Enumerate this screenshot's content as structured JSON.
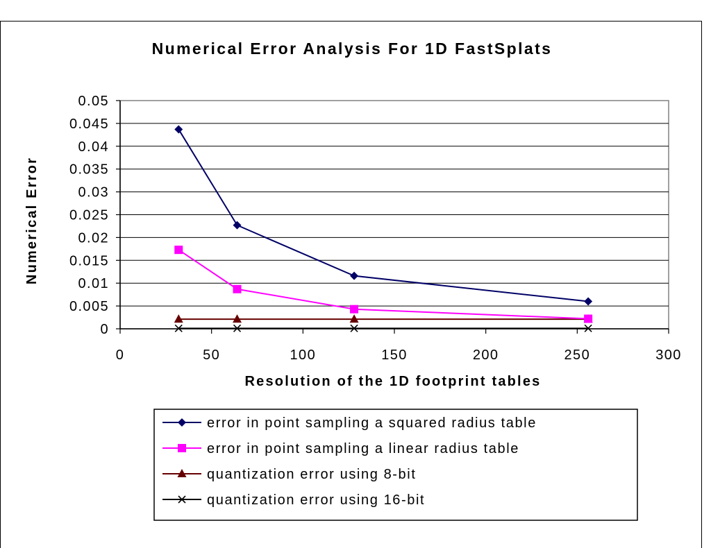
{
  "chart_data": {
    "type": "line",
    "title": "Numerical Error Analysis For 1D FastSplats",
    "xlabel": "Resolution of the 1D footprint tables",
    "ylabel": "Numerical Error",
    "xlim": [
      0,
      300
    ],
    "ylim": [
      0,
      0.05
    ],
    "x_ticks": [
      "0",
      "50",
      "100",
      "150",
      "200",
      "250",
      "300"
    ],
    "y_ticks": [
      "0",
      "0.005",
      "0.01",
      "0.015",
      "0.02",
      "0.025",
      "0.03",
      "0.035",
      "0.04",
      "0.045",
      "0.05"
    ],
    "grid": "horizontal",
    "legend_position": "bottom",
    "x": [
      32,
      64,
      128,
      256
    ],
    "series": [
      {
        "name": "error in point sampling a squared radius table",
        "values": [
          0.0437,
          0.0227,
          0.0116,
          0.006
        ],
        "color": "#000066",
        "marker": "diamond"
      },
      {
        "name": "error in point sampling a linear radius table",
        "values": [
          0.0173,
          0.0087,
          0.0043,
          0.0022
        ],
        "color": "#ff00ff",
        "marker": "square"
      },
      {
        "name": "quantization error using 8-bit",
        "values": [
          0.0021,
          0.0021,
          0.0021,
          0.0021
        ],
        "color": "#660000",
        "marker": "triangle"
      },
      {
        "name": "quantization error using 16-bit",
        "values": [
          0.0001,
          0.0001,
          0.0001,
          0.0001
        ],
        "color": "#000000",
        "marker": "x"
      }
    ]
  }
}
